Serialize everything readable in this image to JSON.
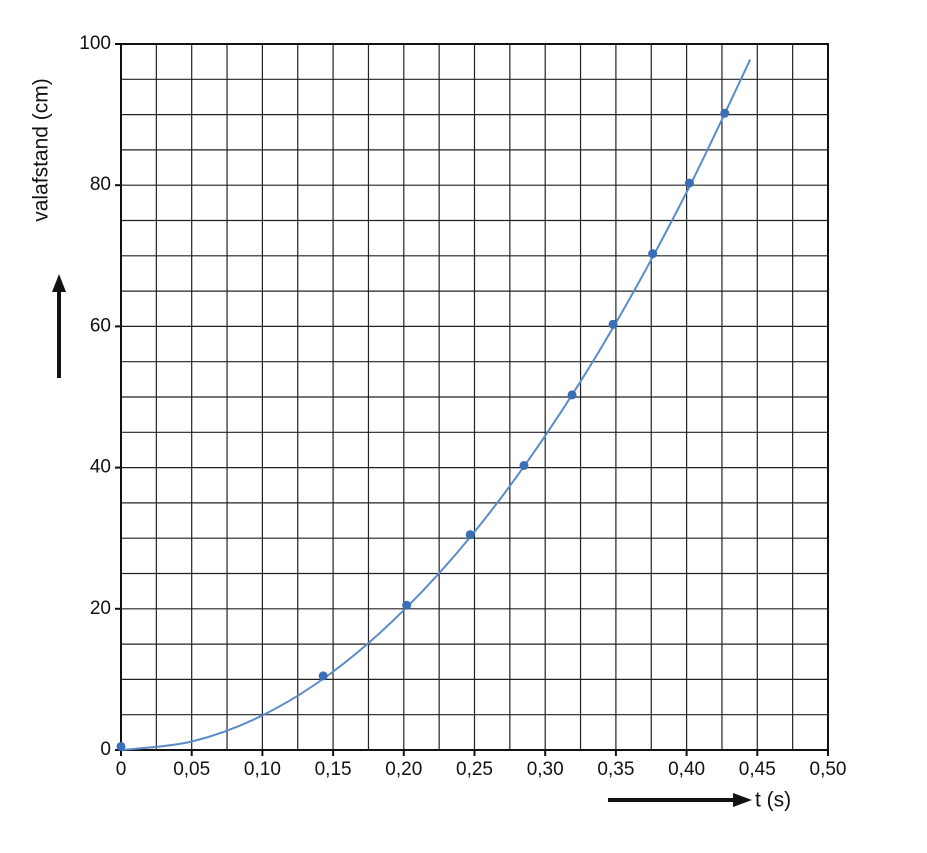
{
  "chart_data": {
    "type": "scatter",
    "x_label": "t (s)",
    "y_label": "valafstand (cm)",
    "xlim": [
      0,
      0.5
    ],
    "ylim": [
      0,
      100
    ],
    "xticks": [
      {
        "value": 0,
        "label": "0"
      },
      {
        "value": 0.05,
        "label": "0,05"
      },
      {
        "value": 0.1,
        "label": "0,10"
      },
      {
        "value": 0.15,
        "label": "0,15"
      },
      {
        "value": 0.2,
        "label": "0,20"
      },
      {
        "value": 0.25,
        "label": "0,25"
      },
      {
        "value": 0.3,
        "label": "0,30"
      },
      {
        "value": 0.35,
        "label": "0,35"
      },
      {
        "value": 0.4,
        "label": "0,40"
      },
      {
        "value": 0.45,
        "label": "0,45"
      },
      {
        "value": 0.5,
        "label": "0,50"
      }
    ],
    "yticks": [
      0,
      20,
      40,
      60,
      80,
      100
    ],
    "xminorticks": [
      0,
      0.025,
      0.05,
      0.075,
      0.1,
      0.125,
      0.15,
      0.175,
      0.2,
      0.225,
      0.25,
      0.275,
      0.3,
      0.325,
      0.35,
      0.375,
      0.4,
      0.425,
      0.45,
      0.475,
      0.5
    ],
    "yminorticks": [
      0,
      5,
      10,
      15,
      20,
      25,
      30,
      35,
      40,
      45,
      50,
      55,
      60,
      65,
      70,
      75,
      80,
      85,
      90,
      95,
      100
    ],
    "grid": true,
    "points": {
      "color": "#3a6fb5",
      "x": [
        0,
        0.143,
        0.202,
        0.247,
        0.285,
        0.319,
        0.348,
        0.376,
        0.402,
        0.427
      ],
      "y": [
        0.5,
        10.5,
        20.5,
        30.5,
        40.3,
        50.3,
        60.3,
        70.3,
        80.3,
        90.2
      ]
    },
    "curve": {
      "color": "#5b8cc8",
      "x": [
        0,
        0.05,
        0.1,
        0.15,
        0.2,
        0.25,
        0.3,
        0.35,
        0.4,
        0.445
      ],
      "y": [
        0,
        1.2,
        4.9,
        11.1,
        19.8,
        30.9,
        44.5,
        60.5,
        79.0,
        97.8
      ]
    }
  }
}
